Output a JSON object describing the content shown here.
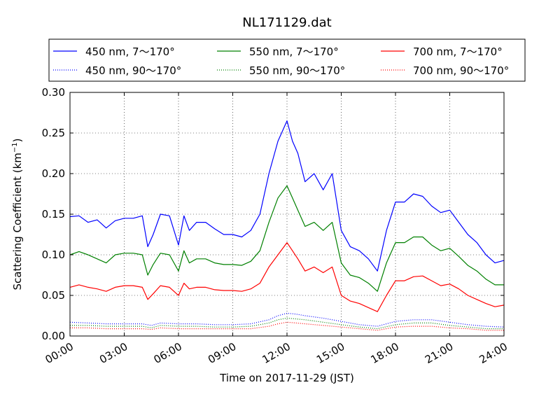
{
  "chart_data": {
    "type": "line",
    "title": "NL171129.dat",
    "xlabel": "Time on 2017-11-29 (JST)",
    "ylabel_main": "Scattering Coefficient (km",
    "ylabel_sup": "−1",
    "ylabel_close": ")",
    "xlim": [
      0,
      24
    ],
    "ylim": [
      0,
      0.3
    ],
    "grid": true,
    "legend_position": "top",
    "x_ticks": [
      {
        "value": 0,
        "label": "00:00"
      },
      {
        "value": 3,
        "label": "03:00"
      },
      {
        "value": 6,
        "label": "06:00"
      },
      {
        "value": 9,
        "label": "09:00"
      },
      {
        "value": 12,
        "label": "12:00"
      },
      {
        "value": 15,
        "label": "15:00"
      },
      {
        "value": 18,
        "label": "18:00"
      },
      {
        "value": 21,
        "label": "21:00"
      },
      {
        "value": 24,
        "label": "24:00"
      }
    ],
    "y_ticks": [
      {
        "value": 0,
        "label": "0.00"
      },
      {
        "value": 0.05,
        "label": "0.05"
      },
      {
        "value": 0.1,
        "label": "0.10"
      },
      {
        "value": 0.15,
        "label": "0.15"
      },
      {
        "value": 0.2,
        "label": "0.20"
      },
      {
        "value": 0.25,
        "label": "0.25"
      },
      {
        "value": 0.3,
        "label": "0.30"
      }
    ],
    "series": [
      {
        "name": "450 nm, 7～170°",
        "color": "#0000ff",
        "style": "solid",
        "x": [
          0,
          0.5,
          1,
          1.5,
          2,
          2.5,
          3,
          3.5,
          4,
          4.3,
          4.6,
          5,
          5.5,
          6,
          6.3,
          6.6,
          7,
          7.5,
          8,
          8.5,
          9,
          9.5,
          10,
          10.5,
          11,
          11.5,
          12,
          12.3,
          12.6,
          13,
          13.5,
          14,
          14.5,
          15,
          15.5,
          16,
          16.5,
          17,
          17.5,
          18,
          18.5,
          19,
          19.5,
          20,
          20.5,
          21,
          21.5,
          22,
          22.5,
          23,
          23.5,
          24
        ],
        "y": [
          0.147,
          0.148,
          0.14,
          0.143,
          0.133,
          0.142,
          0.145,
          0.145,
          0.148,
          0.11,
          0.125,
          0.15,
          0.148,
          0.112,
          0.148,
          0.13,
          0.14,
          0.14,
          0.132,
          0.125,
          0.125,
          0.122,
          0.13,
          0.15,
          0.2,
          0.24,
          0.265,
          0.24,
          0.225,
          0.19,
          0.2,
          0.18,
          0.2,
          0.13,
          0.11,
          0.105,
          0.095,
          0.08,
          0.13,
          0.165,
          0.165,
          0.175,
          0.172,
          0.16,
          0.152,
          0.155,
          0.14,
          0.125,
          0.115,
          0.1,
          0.09,
          0.093
        ]
      },
      {
        "name": "550 nm, 7～170°",
        "color": "#008000",
        "style": "solid",
        "x": [
          0,
          0.5,
          1,
          1.5,
          2,
          2.5,
          3,
          3.5,
          4,
          4.3,
          4.6,
          5,
          5.5,
          6,
          6.3,
          6.6,
          7,
          7.5,
          8,
          8.5,
          9,
          9.5,
          10,
          10.5,
          11,
          11.5,
          12,
          12.3,
          12.6,
          13,
          13.5,
          14,
          14.5,
          15,
          15.5,
          16,
          16.5,
          17,
          17.5,
          18,
          18.5,
          19,
          19.5,
          20,
          20.5,
          21,
          21.5,
          22,
          22.5,
          23,
          23.5,
          24
        ],
        "y": [
          0.1,
          0.104,
          0.1,
          0.095,
          0.09,
          0.1,
          0.102,
          0.102,
          0.1,
          0.075,
          0.088,
          0.102,
          0.1,
          0.08,
          0.105,
          0.09,
          0.095,
          0.095,
          0.09,
          0.088,
          0.088,
          0.087,
          0.092,
          0.105,
          0.14,
          0.17,
          0.185,
          0.17,
          0.155,
          0.135,
          0.14,
          0.13,
          0.14,
          0.09,
          0.075,
          0.072,
          0.065,
          0.055,
          0.09,
          0.115,
          0.115,
          0.122,
          0.122,
          0.112,
          0.105,
          0.108,
          0.098,
          0.087,
          0.08,
          0.07,
          0.063,
          0.063
        ]
      },
      {
        "name": "700 nm, 7～170°",
        "color": "#ff0000",
        "style": "solid",
        "x": [
          0,
          0.5,
          1,
          1.5,
          2,
          2.5,
          3,
          3.5,
          4,
          4.3,
          4.6,
          5,
          5.5,
          6,
          6.3,
          6.6,
          7,
          7.5,
          8,
          8.5,
          9,
          9.5,
          10,
          10.5,
          11,
          11.5,
          12,
          12.3,
          12.6,
          13,
          13.5,
          14,
          14.5,
          15,
          15.5,
          16,
          16.5,
          17,
          17.5,
          18,
          18.5,
          19,
          19.5,
          20,
          20.5,
          21,
          21.5,
          22,
          22.5,
          23,
          23.5,
          24
        ],
        "y": [
          0.06,
          0.063,
          0.06,
          0.058,
          0.055,
          0.06,
          0.062,
          0.062,
          0.06,
          0.045,
          0.052,
          0.062,
          0.06,
          0.05,
          0.065,
          0.058,
          0.06,
          0.06,
          0.057,
          0.056,
          0.056,
          0.055,
          0.058,
          0.065,
          0.085,
          0.1,
          0.115,
          0.105,
          0.095,
          0.08,
          0.085,
          0.078,
          0.085,
          0.05,
          0.043,
          0.04,
          0.035,
          0.03,
          0.05,
          0.068,
          0.068,
          0.073,
          0.074,
          0.068,
          0.062,
          0.064,
          0.058,
          0.05,
          0.045,
          0.04,
          0.036,
          0.038
        ]
      },
      {
        "name": "450 nm, 90～170°",
        "color": "#0000ff",
        "style": "dotted",
        "x": [
          0,
          1,
          2,
          3,
          4,
          4.5,
          5,
          6,
          7,
          8,
          9,
          10,
          11,
          11.5,
          12,
          12.5,
          13,
          14,
          15,
          16,
          17,
          18,
          19,
          20,
          21,
          22,
          23,
          24
        ],
        "y": [
          0.017,
          0.016,
          0.015,
          0.015,
          0.015,
          0.013,
          0.016,
          0.015,
          0.015,
          0.014,
          0.014,
          0.015,
          0.02,
          0.025,
          0.028,
          0.027,
          0.025,
          0.022,
          0.018,
          0.014,
          0.012,
          0.018,
          0.02,
          0.02,
          0.017,
          0.014,
          0.012,
          0.011
        ]
      },
      {
        "name": "550 nm, 90～170°",
        "color": "#008000",
        "style": "dotted",
        "x": [
          0,
          1,
          2,
          3,
          4,
          4.5,
          5,
          6,
          7,
          8,
          9,
          10,
          11,
          11.5,
          12,
          12.5,
          13,
          14,
          15,
          16,
          17,
          18,
          19,
          20,
          21,
          22,
          23,
          24
        ],
        "y": [
          0.013,
          0.013,
          0.012,
          0.012,
          0.012,
          0.01,
          0.013,
          0.012,
          0.012,
          0.011,
          0.011,
          0.012,
          0.016,
          0.02,
          0.022,
          0.021,
          0.02,
          0.017,
          0.014,
          0.011,
          0.009,
          0.014,
          0.016,
          0.016,
          0.013,
          0.011,
          0.009,
          0.009
        ]
      },
      {
        "name": "700 nm, 90～170°",
        "color": "#ff0000",
        "style": "dotted",
        "x": [
          0,
          1,
          2,
          3,
          4,
          4.5,
          5,
          6,
          7,
          8,
          9,
          10,
          11,
          11.5,
          12,
          12.5,
          13,
          14,
          15,
          16,
          17,
          18,
          19,
          20,
          21,
          22,
          23,
          24
        ],
        "y": [
          0.01,
          0.01,
          0.009,
          0.009,
          0.009,
          0.008,
          0.01,
          0.009,
          0.009,
          0.009,
          0.009,
          0.009,
          0.012,
          0.015,
          0.017,
          0.016,
          0.015,
          0.013,
          0.011,
          0.009,
          0.007,
          0.011,
          0.012,
          0.012,
          0.01,
          0.009,
          0.007,
          0.007
        ]
      }
    ],
    "legend_order": [
      0,
      3,
      1,
      4,
      2,
      5
    ]
  }
}
